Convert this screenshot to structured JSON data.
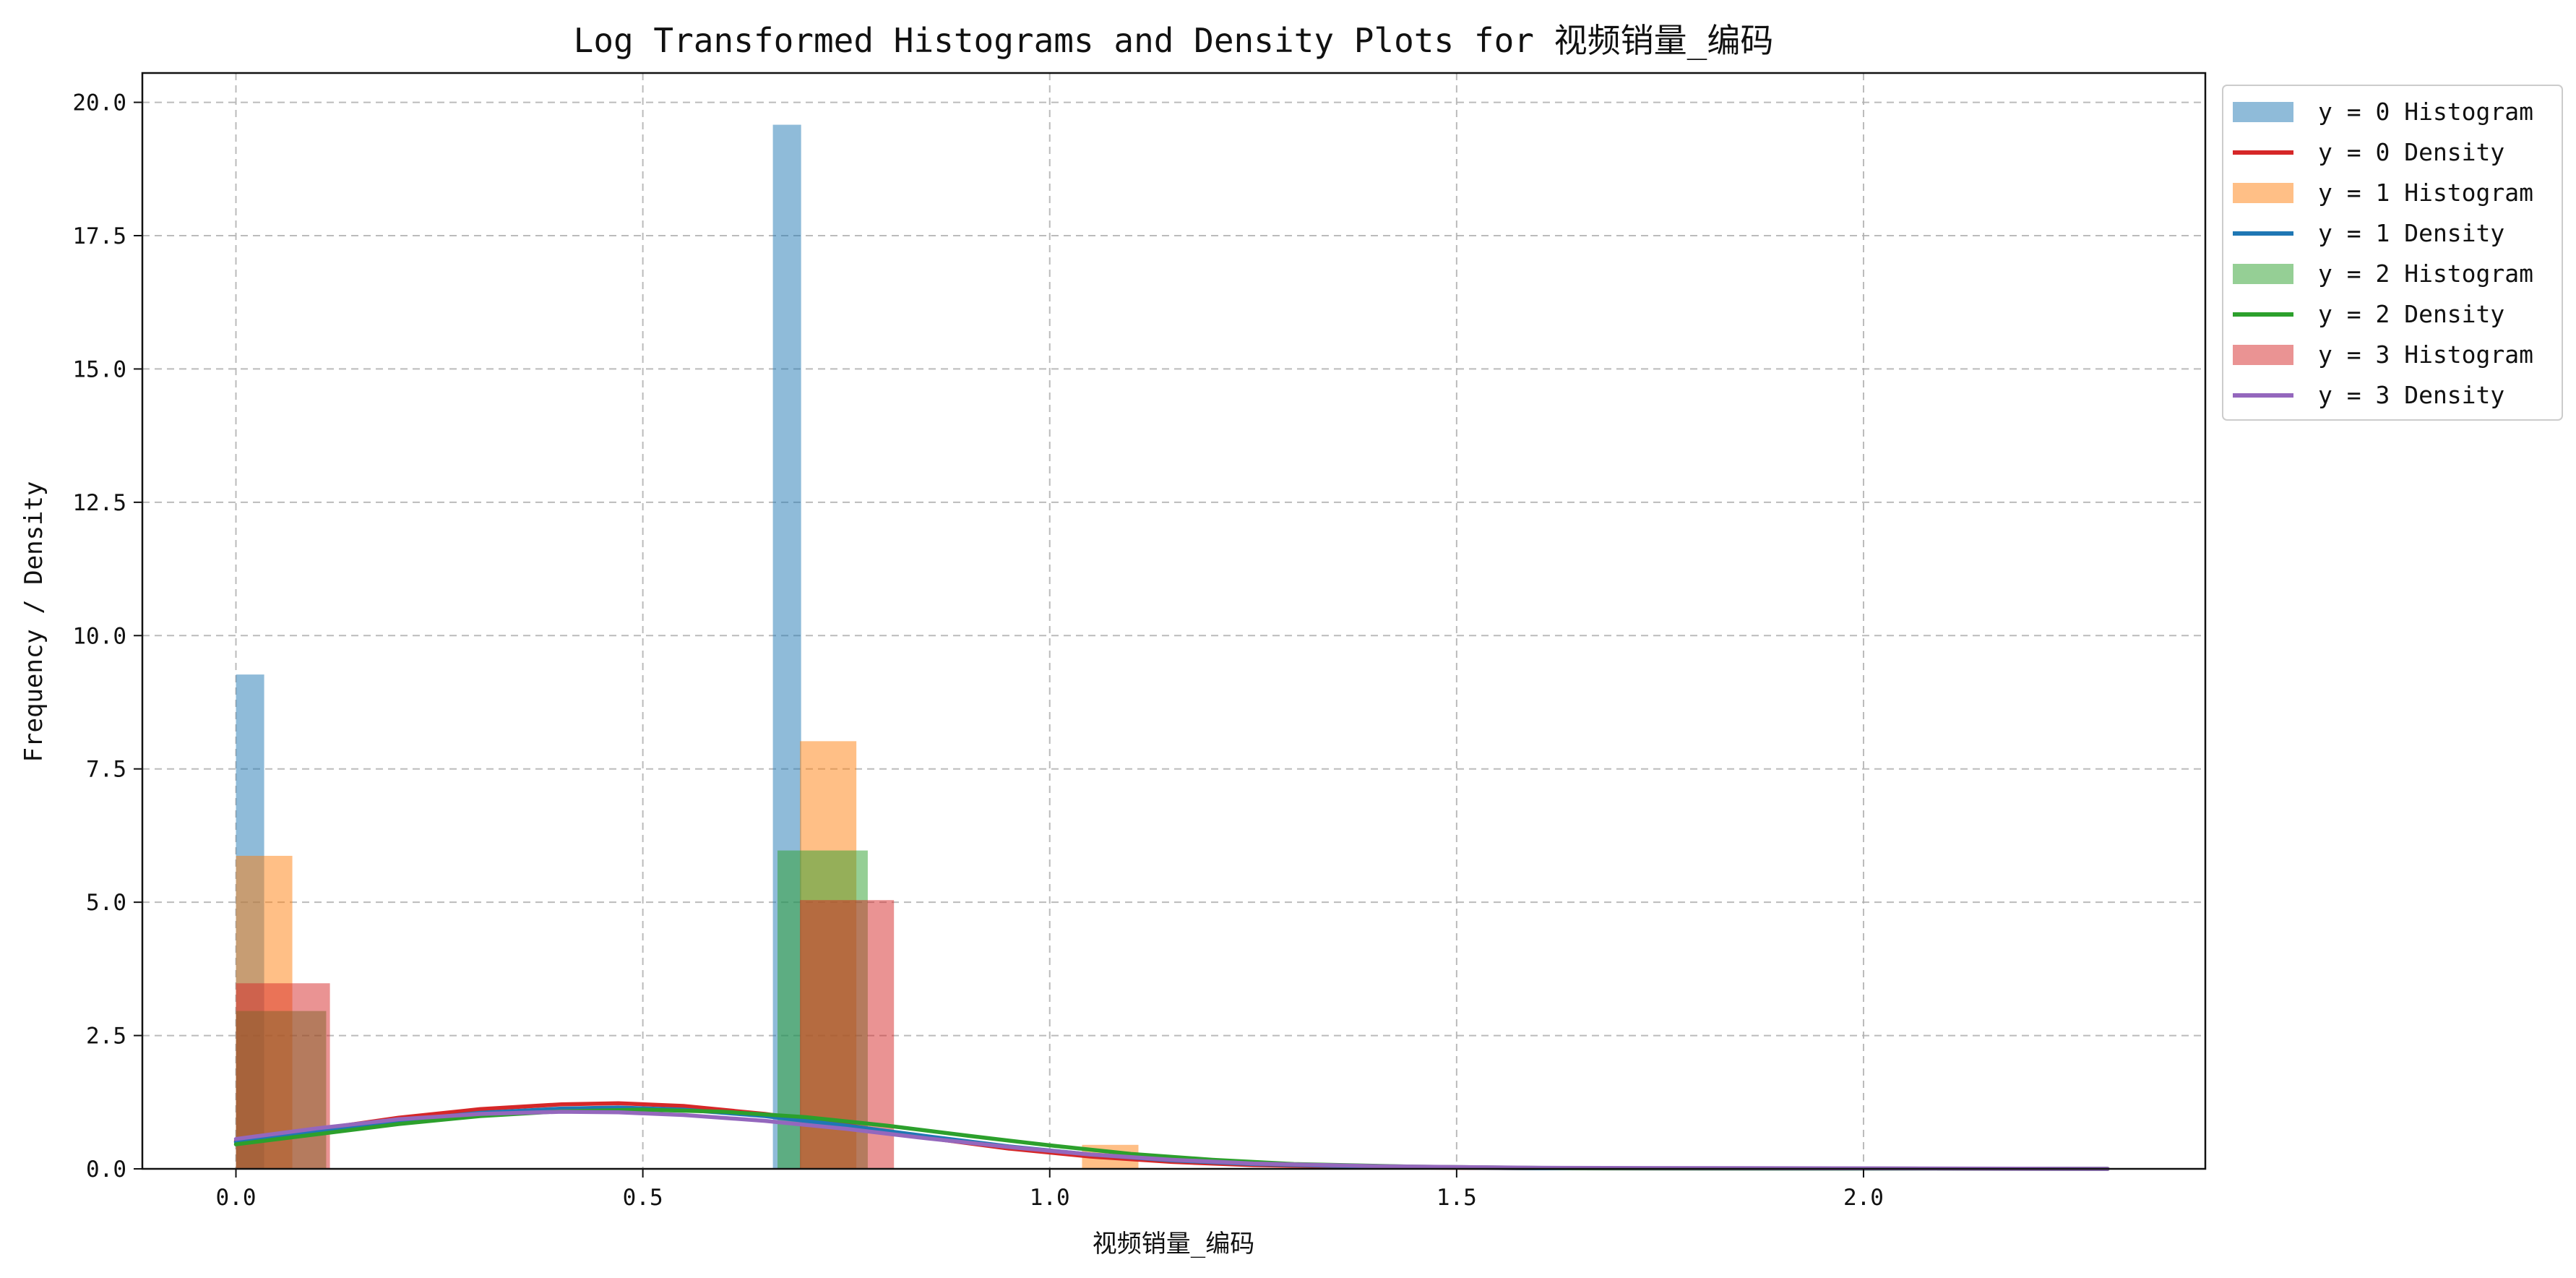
{
  "chart_data": {
    "type": "histogram_density",
    "title": "Log Transformed Histograms and Density Plots for 视频销量_编码",
    "xlabel": "视频销量_编码",
    "ylabel": "Frequency / Density",
    "xlim": [
      -0.115,
      2.42
    ],
    "ylim": [
      0,
      20.55
    ],
    "x_ticks": [
      0.0,
      0.5,
      1.0,
      1.5,
      2.0
    ],
    "x_tick_labels": [
      "0.0",
      "0.5",
      "1.0",
      "1.5",
      "2.0"
    ],
    "y_ticks": [
      0.0,
      2.5,
      5.0,
      7.5,
      10.0,
      12.5,
      15.0,
      17.5,
      20.0
    ],
    "y_tick_labels": [
      "0.0",
      "2.5",
      "5.0",
      "7.5",
      "10.0",
      "12.5",
      "15.0",
      "17.5",
      "20.0"
    ],
    "grid": true,
    "grid_style": "dashed",
    "legend_position": "outside-top-right",
    "series": [
      {
        "label": "y = 0",
        "hist_label": "y = 0 Histogram",
        "density_label": "y = 0 Density",
        "hist_color": "#1f77b4",
        "density_color": "#d62728",
        "bins": [
          {
            "x0": 0.0,
            "x1": 0.0347,
            "value": 9.27
          },
          {
            "x0": 0.6598,
            "x1": 0.6945,
            "value": 19.58
          }
        ],
        "density_points": [
          [
            0.0,
            0.52
          ],
          [
            0.1,
            0.74
          ],
          [
            0.2,
            0.96
          ],
          [
            0.3,
            1.12
          ],
          [
            0.4,
            1.21
          ],
          [
            0.47,
            1.23
          ],
          [
            0.55,
            1.18
          ],
          [
            0.65,
            1.03
          ],
          [
            0.75,
            0.82
          ],
          [
            0.85,
            0.58
          ],
          [
            0.95,
            0.38
          ],
          [
            1.05,
            0.23
          ],
          [
            1.15,
            0.13
          ],
          [
            1.25,
            0.07
          ],
          [
            1.4,
            0.03
          ],
          [
            1.6,
            0.01
          ],
          [
            2.3,
            0.0
          ]
        ]
      },
      {
        "label": "y = 1",
        "hist_label": "y = 1 Histogram",
        "density_label": "y = 1 Density",
        "hist_color": "#ff7f0e",
        "density_color": "#1f77b4",
        "bins": [
          {
            "x0": 0.0,
            "x1": 0.0693,
            "value": 5.87
          },
          {
            "x0": 0.6931,
            "x1": 0.7624,
            "value": 8.02
          },
          {
            "x0": 1.0397,
            "x1": 1.109,
            "value": 0.45
          }
        ],
        "density_points": [
          [
            0.0,
            0.5
          ],
          [
            0.1,
            0.7
          ],
          [
            0.2,
            0.9
          ],
          [
            0.3,
            1.05
          ],
          [
            0.4,
            1.13
          ],
          [
            0.47,
            1.15
          ],
          [
            0.55,
            1.11
          ],
          [
            0.65,
            0.99
          ],
          [
            0.75,
            0.81
          ],
          [
            0.85,
            0.61
          ],
          [
            0.95,
            0.42
          ],
          [
            1.05,
            0.27
          ],
          [
            1.15,
            0.16
          ],
          [
            1.25,
            0.09
          ],
          [
            1.4,
            0.04
          ],
          [
            1.6,
            0.01
          ],
          [
            2.3,
            0.0
          ]
        ]
      },
      {
        "label": "y = 2",
        "hist_label": "y = 2 Histogram",
        "density_label": "y = 2 Density",
        "hist_color": "#2ca02c",
        "density_color": "#2ca02c",
        "bins": [
          {
            "x0": 0.0,
            "x1": 0.1109,
            "value": 2.96
          },
          {
            "x0": 0.6655,
            "x1": 0.7764,
            "value": 5.97
          }
        ],
        "density_points": [
          [
            0.0,
            0.46
          ],
          [
            0.1,
            0.65
          ],
          [
            0.2,
            0.84
          ],
          [
            0.3,
            0.99
          ],
          [
            0.4,
            1.08
          ],
          [
            0.5,
            1.11
          ],
          [
            0.6,
            1.07
          ],
          [
            0.7,
            0.97
          ],
          [
            0.8,
            0.81
          ],
          [
            0.9,
            0.62
          ],
          [
            1.0,
            0.44
          ],
          [
            1.1,
            0.28
          ],
          [
            1.2,
            0.17
          ],
          [
            1.3,
            0.09
          ],
          [
            1.45,
            0.04
          ],
          [
            1.65,
            0.01
          ],
          [
            2.3,
            0.0
          ]
        ]
      },
      {
        "label": "y = 3",
        "hist_label": "y = 3 Histogram",
        "density_label": "y = 3 Density",
        "hist_color": "#d62728",
        "density_color": "#9467bd",
        "bins": [
          {
            "x0": 0.0,
            "x1": 0.1155,
            "value": 3.48
          },
          {
            "x0": 0.6931,
            "x1": 0.8086,
            "value": 5.04
          }
        ],
        "density_points": [
          [
            0.0,
            0.56
          ],
          [
            0.1,
            0.76
          ],
          [
            0.2,
            0.93
          ],
          [
            0.3,
            1.03
          ],
          [
            0.4,
            1.07
          ],
          [
            0.47,
            1.06
          ],
          [
            0.55,
            1.01
          ],
          [
            0.65,
            0.9
          ],
          [
            0.75,
            0.75
          ],
          [
            0.85,
            0.57
          ],
          [
            0.95,
            0.41
          ],
          [
            1.05,
            0.27
          ],
          [
            1.15,
            0.17
          ],
          [
            1.25,
            0.1
          ],
          [
            1.4,
            0.05
          ],
          [
            1.6,
            0.02
          ],
          [
            2.3,
            0.0
          ]
        ]
      }
    ]
  }
}
